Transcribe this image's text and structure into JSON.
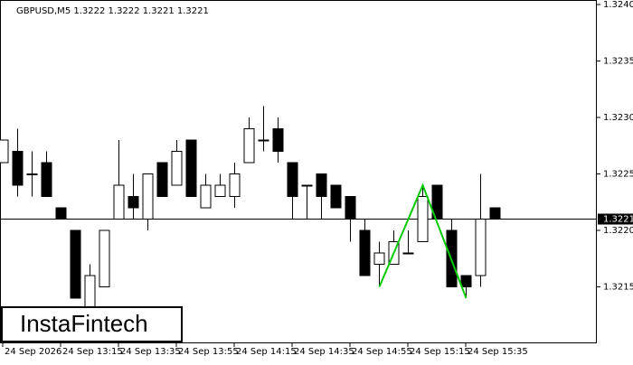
{
  "chart_data": {
    "type": "candlestick",
    "title": "GBPUSD,M5  1.3222 1.3222 1.3221 1.3221",
    "logo": "InstaFintech",
    "categories": [
      "24 Sep 2026",
      null,
      null,
      null,
      "24 Sep 13:15",
      null,
      null,
      null,
      "24 Sep 13:35",
      null,
      null,
      null,
      "24 Sep 13:55",
      null,
      null,
      null,
      "24 Sep 14:15",
      null,
      null,
      null,
      "24 Sep 14:35",
      null,
      null,
      null,
      "24 Sep 14:55",
      null,
      null,
      null,
      "24 Sep 15:15",
      null,
      null,
      null,
      "24 Sep 15:35",
      null,
      null
    ],
    "open": [
      1.3226,
      1.3227,
      1.3225,
      1.3226,
      1.3222,
      1.322,
      1.3213,
      1.3215,
      1.3221,
      1.3223,
      1.3221,
      1.3226,
      1.3224,
      1.3228,
      1.3222,
      1.3223,
      1.3223,
      1.3226,
      1.3228,
      1.3229,
      1.3226,
      1.3224,
      1.3225,
      1.3224,
      1.3223,
      1.322,
      1.3217,
      1.3217,
      1.3218,
      1.3219,
      1.3224,
      1.322,
      1.3216,
      1.3216,
      1.3222
    ],
    "high": [
      1.3228,
      1.3229,
      1.3227,
      1.3227,
      1.3222,
      1.322,
      1.3217,
      1.322,
      1.3228,
      1.3225,
      1.3225,
      1.3226,
      1.3228,
      1.3228,
      1.3225,
      1.3225,
      1.3226,
      1.323,
      1.3231,
      1.323,
      1.3226,
      1.3224,
      1.3225,
      1.3224,
      1.3223,
      1.3221,
      1.3219,
      1.322,
      1.322,
      1.3224,
      1.3224,
      1.3221,
      1.3216,
      1.3225,
      1.3222
    ],
    "low": [
      1.3226,
      1.3223,
      1.3223,
      1.3223,
      1.3221,
      1.3214,
      1.3213,
      1.3215,
      1.3221,
      1.3221,
      1.322,
      1.3223,
      1.3224,
      1.3223,
      1.3222,
      1.3223,
      1.3222,
      1.3226,
      1.3227,
      1.3226,
      1.3221,
      1.3221,
      1.3221,
      1.3222,
      1.3219,
      1.3216,
      1.3215,
      1.3217,
      1.3218,
      1.3219,
      1.3221,
      1.3215,
      1.3214,
      1.3215,
      1.3221
    ],
    "close": [
      1.3228,
      1.3224,
      1.3225,
      1.3223,
      1.3221,
      1.3214,
      1.3216,
      1.322,
      1.3224,
      1.3222,
      1.3225,
      1.3223,
      1.3227,
      1.3223,
      1.3224,
      1.3224,
      1.3225,
      1.3229,
      1.3228,
      1.3227,
      1.3223,
      1.3224,
      1.3223,
      1.3222,
      1.3221,
      1.3216,
      1.3218,
      1.3219,
      1.3218,
      1.3223,
      1.3221,
      1.3215,
      1.3215,
      1.3221,
      1.3221
    ],
    "up_color": "#ffffff",
    "down_color": "#000000",
    "ylim": [
      1.321,
      1.324
    ],
    "yticks": [
      {
        "value": 1.324,
        "label": "1.3240"
      },
      {
        "value": 1.3235,
        "label": "1.3235"
      },
      {
        "value": 1.323,
        "label": "1.3230"
      },
      {
        "value": 1.3225,
        "label": "1.3225"
      },
      {
        "value": 1.322,
        "label": "1.3220"
      },
      {
        "value": 1.3215,
        "label": "1.3215"
      }
    ],
    "current": {
      "value": 1.3221,
      "label": "1.3221"
    },
    "pattern": {
      "color": "#00cc00",
      "x": [
        26,
        29,
        32
      ],
      "values": [
        1.3215,
        1.3224,
        1.3214
      ]
    }
  }
}
